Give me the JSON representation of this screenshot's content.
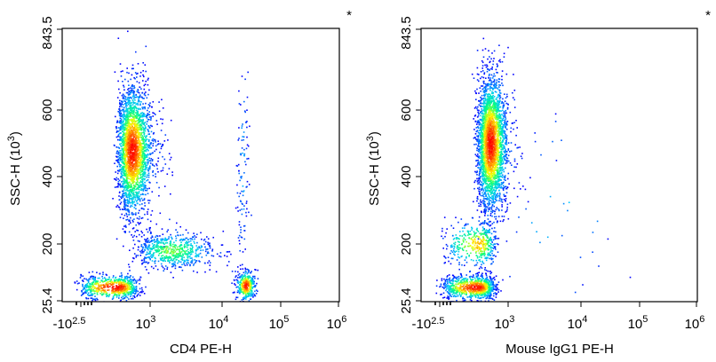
{
  "chart_data": [
    {
      "type": "scatter",
      "subtype": "flow-cytometry-density-dot-plot",
      "title": "",
      "xlabel": "CD4 PE-H",
      "ylabel_main": "SSC-H (10",
      "ylabel_exp": "3",
      "ylabel_close": ")",
      "corner_mark": "*",
      "x_scale": "biexponential-log",
      "x_ticks": [
        {
          "base": "-10",
          "exp": "2.5",
          "value": -316
        },
        {
          "base": "10",
          "exp": "3",
          "value": 1000
        },
        {
          "base": "10",
          "exp": "4",
          "value": 10000
        },
        {
          "base": "10",
          "exp": "5",
          "value": 100000
        },
        {
          "base": "10",
          "exp": "6",
          "value": 1000000
        }
      ],
      "y_ticks": [
        {
          "label": "25.4",
          "value": 25.4
        },
        {
          "label": "200",
          "value": 200
        },
        {
          "label": "400",
          "value": 400
        },
        {
          "label": "600",
          "value": 600
        },
        {
          "label": "843.5",
          "value": 843.5
        }
      ],
      "ylim": [
        25.4,
        843.5
      ],
      "density_colormap": [
        "#0000ff",
        "#00c8ff",
        "#00ff80",
        "#ffff00",
        "#ff8000",
        "#ff0000"
      ],
      "populations": [
        {
          "x_center": 300,
          "y_center": 480,
          "x_spread": 0.28,
          "y_spread": 95,
          "count": 2600,
          "peak": "red"
        },
        {
          "x_center": 60,
          "y_center": 70,
          "x_spread": 0.35,
          "y_spread": 18,
          "count": 700,
          "peak": "red"
        },
        {
          "x_center": 2000,
          "y_center": 180,
          "x_spread": 0.3,
          "y_spread": 28,
          "count": 650,
          "peak": "green"
        },
        {
          "x_center": 25000,
          "y_center": 75,
          "x_spread": 0.08,
          "y_spread": 22,
          "count": 380,
          "peak": "red"
        },
        {
          "x_center": 22000,
          "y_center": 420,
          "x_spread": 0.05,
          "y_spread": 160,
          "count": 110,
          "peak": "blue"
        }
      ]
    },
    {
      "type": "scatter",
      "subtype": "flow-cytometry-density-dot-plot",
      "title": "",
      "xlabel": "Mouse IgG1 PE-H",
      "ylabel_main": "SSC-H (10",
      "ylabel_exp": "3",
      "ylabel_close": ")",
      "corner_mark": "*",
      "x_scale": "biexponential-log",
      "x_ticks": [
        {
          "base": "-10",
          "exp": "2.5",
          "value": -316
        },
        {
          "base": "10",
          "exp": "3",
          "value": 1000
        },
        {
          "base": "10",
          "exp": "4",
          "value": 10000
        },
        {
          "base": "10",
          "exp": "5",
          "value": 100000
        },
        {
          "base": "10",
          "exp": "6",
          "value": 1000000
        }
      ],
      "y_ticks": [
        {
          "label": "25.4",
          "value": 25.4
        },
        {
          "label": "200",
          "value": 200
        },
        {
          "label": "400",
          "value": 400
        },
        {
          "label": "600",
          "value": 600
        },
        {
          "label": "843.5",
          "value": 843.5
        }
      ],
      "ylim": [
        25.4,
        843.5
      ],
      "density_colormap": [
        "#0000ff",
        "#00c8ff",
        "#00ff80",
        "#ffff00",
        "#ff8000",
        "#ff0000"
      ],
      "populations": [
        {
          "x_center": 300,
          "y_center": 500,
          "x_spread": 0.25,
          "y_spread": 100,
          "count": 2900,
          "peak": "red"
        },
        {
          "x_center": 80,
          "y_center": 70,
          "x_spread": 0.3,
          "y_spread": 18,
          "count": 900,
          "peak": "red"
        },
        {
          "x_center": 110,
          "y_center": 200,
          "x_spread": 0.3,
          "y_spread": 35,
          "count": 420,
          "peak": "yellow"
        },
        {
          "x_center": 5000,
          "y_center": 300,
          "x_spread": 0.6,
          "y_spread": 150,
          "count": 30,
          "peak": "blue"
        }
      ]
    }
  ]
}
